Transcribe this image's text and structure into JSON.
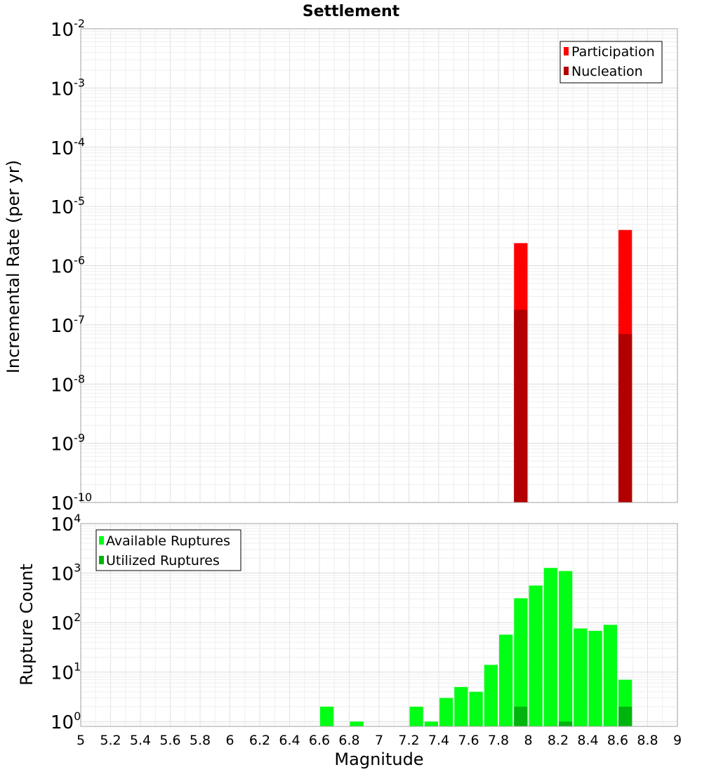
{
  "chart_data": [
    {
      "type": "bar",
      "title": "Settlement",
      "xlabel": "",
      "ylabel": "Incremental Rate (per yr)",
      "y_scale": "log",
      "ylim": [
        1e-10,
        0.01
      ],
      "xlim": [
        5,
        9
      ],
      "y_ticks": [
        {
          "base": "10",
          "exp": "-10"
        },
        {
          "base": "10",
          "exp": "-9"
        },
        {
          "base": "10",
          "exp": "-8"
        },
        {
          "base": "10",
          "exp": "-7"
        },
        {
          "base": "10",
          "exp": "-6"
        },
        {
          "base": "10",
          "exp": "-5"
        },
        {
          "base": "10",
          "exp": "-4"
        },
        {
          "base": "10",
          "exp": "-3"
        },
        {
          "base": "10",
          "exp": "-2"
        }
      ],
      "legend_position": "top-right",
      "series": [
        {
          "name": "Participation",
          "color": "#ff0000",
          "x": [
            7.95,
            8.65
          ],
          "values": [
            2.4e-06,
            4e-06
          ]
        },
        {
          "name": "Nucleation",
          "color": "#b20000",
          "x": [
            7.95,
            8.65
          ],
          "values": [
            1.8e-07,
            7e-08
          ]
        }
      ]
    },
    {
      "type": "bar",
      "title": "",
      "xlabel": "Magnitude",
      "ylabel": "Rupture Count",
      "y_scale": "log",
      "ylim": [
        0.8,
        10000
      ],
      "xlim": [
        5,
        9
      ],
      "x_ticks": [
        "5",
        "5.2",
        "5.4",
        "5.6",
        "5.8",
        "6",
        "6.2",
        "6.4",
        "6.6",
        "6.8",
        "7",
        "7.2",
        "7.4",
        "7.6",
        "7.8",
        "8",
        "8.2",
        "8.4",
        "8.6",
        "8.8",
        "9"
      ],
      "y_ticks": [
        {
          "base": "10",
          "exp": "0"
        },
        {
          "base": "10",
          "exp": "1"
        },
        {
          "base": "10",
          "exp": "2"
        },
        {
          "base": "10",
          "exp": "3"
        },
        {
          "base": "10",
          "exp": "4"
        }
      ],
      "legend_position": "top-left",
      "series": [
        {
          "name": "Available Ruptures",
          "color": "#00ff14",
          "x": [
            6.65,
            6.85,
            7.25,
            7.35,
            7.45,
            7.55,
            7.65,
            7.75,
            7.85,
            7.95,
            8.05,
            8.15,
            8.25,
            8.35,
            8.45,
            8.55,
            8.65
          ],
          "values": [
            2,
            1,
            2,
            1,
            3,
            5,
            4,
            14,
            57,
            310,
            560,
            1270,
            1100,
            76,
            68,
            90,
            7
          ]
        },
        {
          "name": "Utilized Ruptures",
          "color": "#00b40e",
          "x": [
            7.95,
            8.25,
            8.65
          ],
          "values": [
            2,
            1,
            2
          ]
        }
      ]
    }
  ]
}
